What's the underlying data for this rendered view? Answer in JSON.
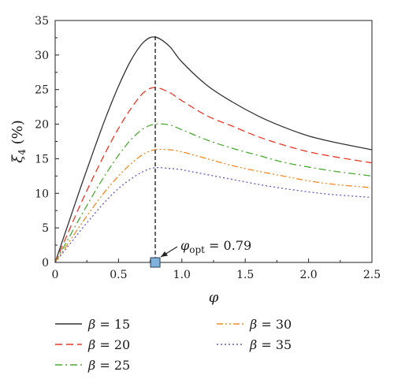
{
  "chart_data": {
    "type": "line",
    "xlabel": "φ",
    "ylabel": "ξ4 (%)",
    "xlim": [
      0,
      2.5
    ],
    "ylim": [
      0,
      35
    ],
    "xticks": [
      "0",
      "0.5",
      "1.0",
      "1.5",
      "2.0",
      "2.5"
    ],
    "yticks": [
      "0",
      "5",
      "10",
      "15",
      "20",
      "25",
      "30",
      "35"
    ],
    "x": [
      0,
      0.1,
      0.2,
      0.3,
      0.4,
      0.5,
      0.6,
      0.7,
      0.79,
      0.9,
      1.0,
      1.2,
      1.4,
      1.6,
      1.8,
      2.0,
      2.2,
      2.5
    ],
    "series": [
      {
        "name": "β = 15",
        "color": "#333333",
        "dash": "solid",
        "values": [
          0,
          5.4,
          10.8,
          16.0,
          21.0,
          25.5,
          29.3,
          31.9,
          32.6,
          31.3,
          29.0,
          25.6,
          23.2,
          21.2,
          19.6,
          18.3,
          17.4,
          16.3
        ]
      },
      {
        "name": "β = 20",
        "color": "#e8392a",
        "dash": "dash",
        "values": [
          0,
          4.2,
          8.4,
          12.3,
          16.0,
          19.4,
          22.3,
          24.6,
          25.3,
          24.6,
          23.4,
          21.2,
          19.7,
          18.2,
          17.0,
          16.0,
          15.3,
          14.4
        ]
      },
      {
        "name": "β = 25",
        "color": "#4aa832",
        "dash": "dashdot",
        "values": [
          0,
          3.3,
          6.6,
          9.8,
          12.8,
          15.5,
          17.8,
          19.4,
          20.0,
          19.9,
          19.2,
          17.7,
          16.5,
          15.5,
          14.5,
          13.8,
          13.2,
          12.5
        ]
      },
      {
        "name": "β = 30",
        "color": "#f08a24",
        "dash": "dashdotdot",
        "values": [
          0,
          2.7,
          5.4,
          8.0,
          10.4,
          12.5,
          14.3,
          15.7,
          16.3,
          16.3,
          16.0,
          15.0,
          14.0,
          13.2,
          12.5,
          11.8,
          11.3,
          10.8
        ]
      },
      {
        "name": "β = 35",
        "color": "#6a56c4",
        "dash": "dot",
        "values": [
          0,
          2.3,
          4.6,
          6.8,
          8.9,
          10.7,
          12.1,
          13.2,
          13.7,
          13.6,
          13.4,
          12.7,
          12.0,
          11.3,
          10.7,
          10.2,
          9.8,
          9.4
        ]
      }
    ],
    "annotation": {
      "symbol": "φ",
      "subscript": "opt",
      "text": " = 0.79",
      "x": 0.79
    },
    "legend_placement": "bottom",
    "grid": false
  }
}
